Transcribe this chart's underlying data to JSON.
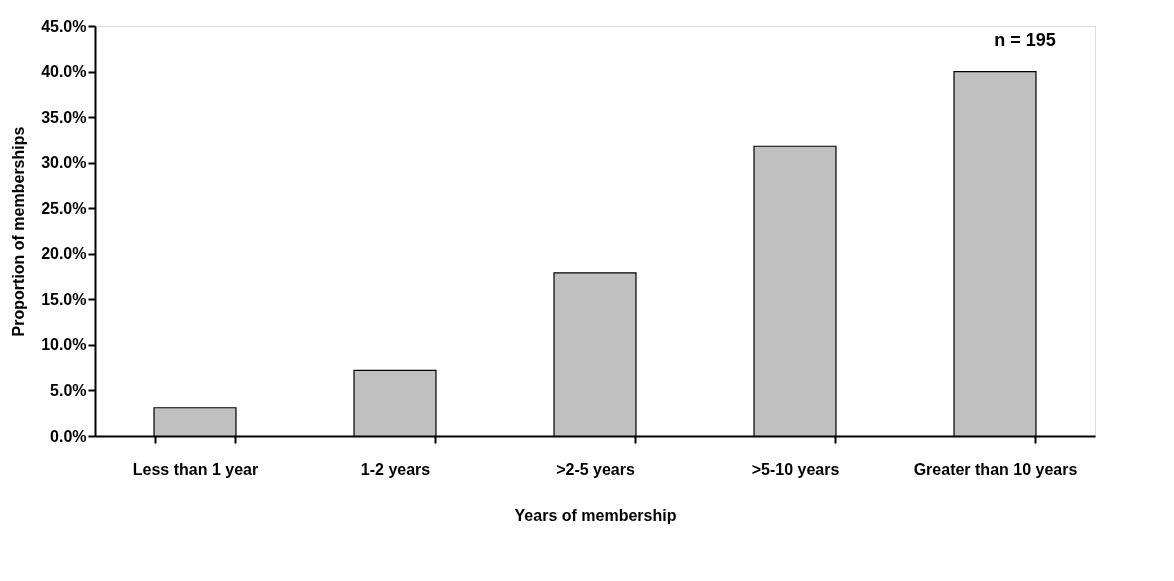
{
  "chart_data": {
    "type": "bar",
    "xlabel": "Years of membership",
    "ylabel": "Proportion of memberships",
    "categories": [
      "Less than 1 year",
      "1-2 years",
      ">2-5 years",
      ">5-10 years",
      "Greater than 10 years"
    ],
    "values": [
      3.1,
      7.2,
      17.9,
      31.8,
      40.0
    ],
    "color": "#c0c0c0",
    "ylim": [
      0,
      45
    ],
    "yticks": [
      {
        "value": 0,
        "label": "0.0%"
      },
      {
        "value": 5,
        "label": "5.0%"
      },
      {
        "value": 10,
        "label": "10.0%"
      },
      {
        "value": 15,
        "label": "15.0%"
      },
      {
        "value": 20,
        "label": "20.0%"
      },
      {
        "value": 25,
        "label": "25.0%"
      },
      {
        "value": 30,
        "label": "30.0%"
      },
      {
        "value": 35,
        "label": "35.0%"
      },
      {
        "value": 40,
        "label": "40.0%"
      },
      {
        "value": 45,
        "label": "45.0%"
      }
    ],
    "annotations": [
      "n = 195"
    ],
    "grid": false
  }
}
